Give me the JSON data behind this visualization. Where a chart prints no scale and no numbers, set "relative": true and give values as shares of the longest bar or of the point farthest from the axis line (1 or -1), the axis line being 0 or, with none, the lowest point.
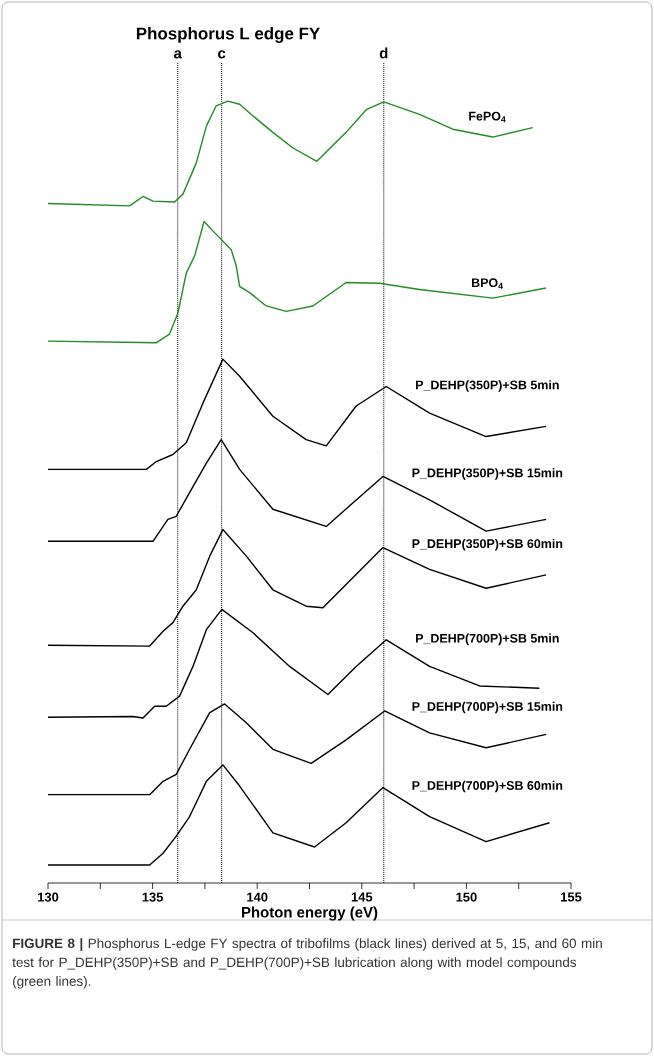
{
  "chart_data": {
    "type": "line",
    "title": "Phosphorus L edge FY",
    "xlabel": "Photon energy (eV)",
    "relative": true,
    "xlim": [
      130,
      155
    ],
    "xticks": [
      130,
      {
        "value": 132.5,
        "label": null
      },
      135,
      {
        "value": 137.5,
        "label": null
      },
      140,
      {
        "value": 142.5,
        "label": null
      },
      145,
      {
        "value": 147.5,
        "label": null
      },
      150,
      {
        "value": 152.5,
        "label": null
      },
      155
    ],
    "grid": false,
    "legend": false,
    "marker": "none",
    "line_style": "solid",
    "series": [
      {
        "name": "FePO$_{4}$",
        "color": "#228b22",
        "x": [
          130.0,
          133.9,
          134.54,
          135.02,
          136.05,
          136.45,
          137.09,
          137.57,
          138.04,
          138.6,
          139.16,
          139.8,
          140.75,
          141.71,
          142.85,
          144.25,
          145.21,
          146.05,
          147.76,
          149.35,
          151.26,
          153.17
        ],
        "values": [
          0.869,
          0.866,
          0.878,
          0.872,
          0.871,
          0.881,
          0.921,
          0.968,
          0.994,
          1.0,
          0.996,
          0.981,
          0.96,
          0.94,
          0.923,
          0.96,
          0.989,
          0.999,
          0.983,
          0.964,
          0.954,
          0.966
        ]
      },
      {
        "name": "BPO$_{4}$",
        "color": "#228b22",
        "x": [
          130.0,
          135.18,
          135.81,
          136.21,
          136.61,
          137.01,
          137.46,
          137.88,
          138.76,
          139.0,
          139.16,
          139.64,
          140.43,
          141.39,
          142.66,
          144.25,
          145.85,
          147.76,
          151.26,
          153.81
        ],
        "values": [
          0.693,
          0.691,
          0.702,
          0.729,
          0.78,
          0.802,
          0.846,
          0.834,
          0.81,
          0.789,
          0.763,
          0.755,
          0.738,
          0.731,
          0.738,
          0.768,
          0.767,
          0.759,
          0.748,
          0.761
        ]
      },
      {
        "name": "P_DEHP(350P)+SB 5min",
        "color": "#000000",
        "x": [
          130.0,
          134.7,
          135.18,
          135.97,
          136.61,
          137.41,
          138.36,
          139.16,
          140.75,
          142.34,
          143.3,
          144.73,
          146.17,
          148.24,
          150.94,
          153.81
        ],
        "values": [
          0.529,
          0.529,
          0.539,
          0.548,
          0.563,
          0.614,
          0.67,
          0.648,
          0.597,
          0.567,
          0.559,
          0.61,
          0.635,
          0.601,
          0.571,
          0.584
        ]
      },
      {
        "name": "P_DEHP(350P)+SB 15min",
        "color": "#000000",
        "x": [
          130.0,
          135.02,
          135.73,
          136.13,
          136.93,
          137.57,
          138.28,
          139.16,
          140.75,
          143.3,
          146.01,
          148.24,
          150.94,
          153.81
        ],
        "values": [
          0.437,
          0.437,
          0.465,
          0.469,
          0.507,
          0.537,
          0.567,
          0.529,
          0.478,
          0.456,
          0.52,
          0.49,
          0.45,
          0.465
        ]
      },
      {
        "name": "P_DEHP(350P)+SB 60min",
        "color": "#000000",
        "x": [
          130.0,
          134.86,
          135.5,
          135.97,
          136.45,
          137.09,
          137.73,
          138.36,
          139.48,
          140.75,
          142.34,
          143.14,
          146.01,
          148.24,
          150.94,
          153.81
        ],
        "values": [
          0.304,
          0.303,
          0.322,
          0.333,
          0.354,
          0.375,
          0.418,
          0.452,
          0.418,
          0.375,
          0.354,
          0.352,
          0.429,
          0.401,
          0.377,
          0.394
        ]
      },
      {
        "name": "P_DEHP(700P)+SB 5min",
        "color": "#000000",
        "x": [
          130.0,
          134.06,
          134.54,
          135.1,
          135.65,
          136.29,
          136.93,
          137.57,
          138.31,
          139.8,
          141.55,
          143.38,
          144.73,
          146.17,
          148.24,
          150.63,
          153.49
        ],
        "values": [
          0.212,
          0.213,
          0.211,
          0.226,
          0.226,
          0.239,
          0.277,
          0.324,
          0.35,
          0.32,
          0.277,
          0.241,
          0.277,
          0.311,
          0.277,
          0.252,
          0.249
        ]
      },
      {
        "name": "P_DEHP(700P)+SB 15min",
        "color": "#000000",
        "x": [
          130.0,
          134.86,
          135.5,
          136.13,
          136.93,
          137.73,
          138.44,
          139.48,
          140.75,
          142.58,
          144.25,
          146.09,
          148.24,
          150.94,
          153.81
        ],
        "values": [
          0.113,
          0.113,
          0.13,
          0.139,
          0.179,
          0.218,
          0.229,
          0.205,
          0.171,
          0.153,
          0.183,
          0.22,
          0.192,
          0.173,
          0.19
        ]
      },
      {
        "name": "P_DEHP(700P)+SB 60min",
        "color": "#000000",
        "x": [
          130.0,
          134.86,
          135.5,
          136.13,
          136.77,
          137.57,
          138.36,
          139.16,
          140.75,
          142.74,
          144.25,
          146.01,
          148.24,
          150.94,
          153.97
        ],
        "values": [
          0.023,
          0.023,
          0.038,
          0.06,
          0.085,
          0.13,
          0.151,
          0.124,
          0.064,
          0.046,
          0.077,
          0.122,
          0.085,
          0.053,
          0.077
        ]
      }
    ],
    "ref_lines": [
      {
        "axis": "x",
        "value": 136.2,
        "label": "a",
        "color": "#000000",
        "line_style": "dotted"
      },
      {
        "axis": "x",
        "value": 138.3,
        "label": "c",
        "color": "#000000",
        "line_style": "dotted"
      },
      {
        "axis": "x",
        "value": 146.05,
        "label": "d",
        "color": "#000000",
        "line_style": "dotted"
      }
    ],
    "annotations": [
      "**FIGURE 8 |** Phosphorus L-edge FY spectra of tribofilms (black lines) derived at 5, 15, and 60 min test for P_DEHP(350P)+SB and P_DEHP(700P)+SB lubrication along with model compounds (green lines)."
    ]
  }
}
